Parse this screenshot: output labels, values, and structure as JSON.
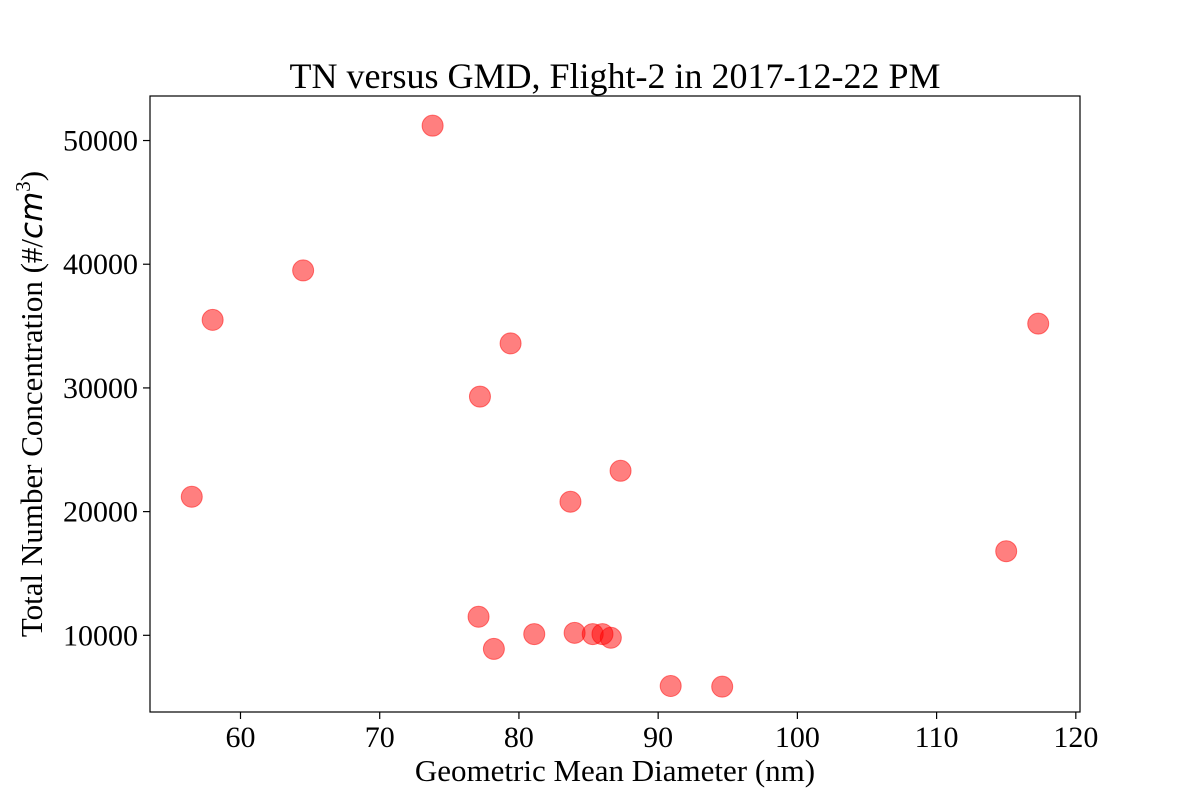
{
  "chart_data": {
    "type": "scatter",
    "title": "TN versus GMD, Flight-2 in 2017-12-22 PM",
    "xlabel": "Geometric Mean Diameter (nm)",
    "ylabel_main": "Total Number Concentration (#/",
    "ylabel_unit": "cm",
    "ylabel_exponent": "3",
    "ylabel_close": ")",
    "xlim": [
      53.5,
      120.3
    ],
    "ylim": [
      3800,
      53600
    ],
    "xticks": [
      60,
      70,
      80,
      90,
      100,
      110,
      120
    ],
    "yticks": [
      10000,
      20000,
      30000,
      40000,
      50000
    ],
    "grid": false,
    "marker_color": "#ff0000",
    "marker_alpha": 0.5,
    "points": [
      {
        "x": 56.5,
        "y": 21200
      },
      {
        "x": 58.0,
        "y": 35500
      },
      {
        "x": 64.5,
        "y": 39500
      },
      {
        "x": 73.8,
        "y": 51200
      },
      {
        "x": 77.2,
        "y": 29300
      },
      {
        "x": 77.1,
        "y": 11500
      },
      {
        "x": 78.2,
        "y": 8900
      },
      {
        "x": 79.4,
        "y": 33600
      },
      {
        "x": 81.1,
        "y": 10100
      },
      {
        "x": 83.7,
        "y": 20800
      },
      {
        "x": 84.0,
        "y": 10200
      },
      {
        "x": 85.3,
        "y": 10100
      },
      {
        "x": 86.0,
        "y": 10100
      },
      {
        "x": 86.6,
        "y": 9800
      },
      {
        "x": 87.3,
        "y": 23300
      },
      {
        "x": 90.9,
        "y": 5900
      },
      {
        "x": 94.6,
        "y": 5850
      },
      {
        "x": 115.0,
        "y": 16800
      },
      {
        "x": 117.3,
        "y": 35200
      }
    ]
  }
}
